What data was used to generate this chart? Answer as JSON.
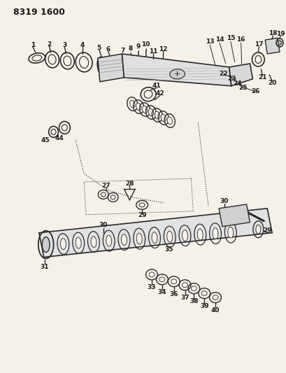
{
  "title": "8319 1600",
  "bg_color": "#f5f0e8",
  "line_color": "#2a2a2a",
  "text_color": "#1a1a1a",
  "figsize": [
    4.1,
    5.33
  ],
  "dpi": 100
}
